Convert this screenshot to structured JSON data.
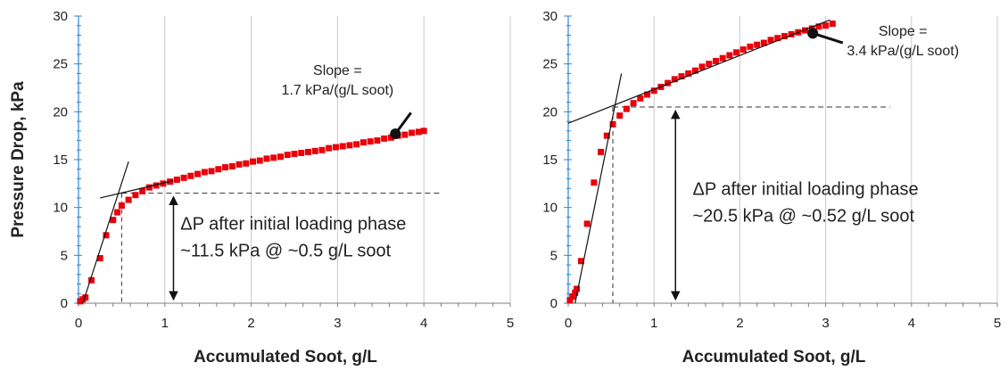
{
  "chart_data": [
    {
      "type": "scatter",
      "xlabel": "Accumulated Soot, g/L",
      "ylabel": "Pressure Drop, kPa",
      "xlim": [
        0,
        5
      ],
      "ylim": [
        0,
        30
      ],
      "xticks": [
        "0",
        "1",
        "2",
        "3",
        "4",
        "5"
      ],
      "yticks": [
        "0",
        "5",
        "10",
        "15",
        "20",
        "25",
        "30"
      ],
      "grid": "vertical",
      "series_color": "#e8000b",
      "x": [
        0.02,
        0.05,
        0.08,
        0.15,
        0.25,
        0.32,
        0.4,
        0.45,
        0.5,
        0.58,
        0.66,
        0.74,
        0.82,
        0.9,
        0.98,
        1.06,
        1.14,
        1.22,
        1.3,
        1.38,
        1.46,
        1.54,
        1.62,
        1.7,
        1.78,
        1.86,
        1.94,
        2.02,
        2.1,
        2.18,
        2.26,
        2.34,
        2.42,
        2.5,
        2.58,
        2.66,
        2.74,
        2.82,
        2.9,
        2.98,
        3.06,
        3.14,
        3.22,
        3.3,
        3.38,
        3.46,
        3.54,
        3.62,
        3.7,
        3.78,
        3.86,
        3.94,
        4.0
      ],
      "y": [
        0.2,
        0.4,
        0.6,
        2.4,
        4.7,
        7.1,
        8.7,
        9.5,
        10.2,
        10.8,
        11.3,
        11.7,
        12.1,
        12.3,
        12.5,
        12.7,
        12.9,
        13.1,
        13.3,
        13.5,
        13.7,
        13.8,
        14.0,
        14.2,
        14.3,
        14.5,
        14.6,
        14.8,
        14.9,
        15.1,
        15.2,
        15.3,
        15.5,
        15.6,
        15.7,
        15.8,
        15.9,
        16.0,
        16.2,
        16.3,
        16.4,
        16.5,
        16.6,
        16.8,
        16.9,
        17.0,
        17.2,
        17.3,
        17.5,
        17.6,
        17.8,
        17.9,
        18.0
      ],
      "fit_lines": [
        {
          "x": [
            0.05,
            0.58
          ],
          "y": [
            0.0,
            14.8
          ]
        },
        {
          "x": [
            0.25,
            1.1
          ],
          "y": [
            11.0,
            12.8
          ]
        }
      ],
      "threshold_y": 11.5,
      "threshold_x": 0.5,
      "slope_label": [
        "Slope =",
        "1.7 kPa/(g/L soot)"
      ],
      "slope_point": {
        "x": 3.67,
        "y": 17.7
      },
      "slope_label_pos": {
        "x": 3.0,
        "y": 22
      },
      "arrow_x": 1.1,
      "annotation": [
        "ΔP after initial loading phase",
        "~11.5 kPa @ ~0.5 g/L soot"
      ],
      "annotation_pos": {
        "x": 1.18,
        "y": 7.7
      }
    },
    {
      "type": "scatter",
      "xlabel": "Accumulated Soot, g/L",
      "ylabel": "",
      "xlim": [
        0,
        5
      ],
      "ylim": [
        0,
        30
      ],
      "xticks": [
        "0",
        "1",
        "2",
        "3",
        "4",
        "5"
      ],
      "yticks": [
        "0",
        "5",
        "10",
        "15",
        "20",
        "25",
        "30"
      ],
      "grid": "vertical",
      "series_color": "#e8000b",
      "x": [
        0.02,
        0.05,
        0.08,
        0.1,
        0.15,
        0.22,
        0.3,
        0.38,
        0.45,
        0.52,
        0.6,
        0.68,
        0.76,
        0.84,
        0.92,
        1.0,
        1.08,
        1.16,
        1.24,
        1.32,
        1.4,
        1.48,
        1.56,
        1.64,
        1.72,
        1.8,
        1.88,
        1.96,
        2.04,
        2.12,
        2.2,
        2.28,
        2.36,
        2.44,
        2.52,
        2.6,
        2.68,
        2.76,
        2.84,
        2.92,
        3.0,
        3.08
      ],
      "y": [
        0.3,
        0.7,
        1.1,
        1.5,
        4.4,
        8.3,
        12.6,
        15.8,
        17.5,
        18.7,
        19.6,
        20.3,
        20.9,
        21.4,
        21.8,
        22.2,
        22.6,
        23.0,
        23.4,
        23.7,
        24.0,
        24.3,
        24.7,
        25.0,
        25.3,
        25.6,
        25.9,
        26.2,
        26.5,
        26.8,
        27.0,
        27.2,
        27.5,
        27.7,
        27.9,
        28.1,
        28.3,
        28.5,
        28.7,
        28.9,
        29.0,
        29.2
      ],
      "fit_lines": [
        {
          "x": [
            0.08,
            0.62
          ],
          "y": [
            0.0,
            24.0
          ]
        },
        {
          "x": [
            0.0,
            3.05
          ],
          "y": [
            18.8,
            29.6
          ]
        }
      ],
      "threshold_y": 20.5,
      "threshold_x": 0.52,
      "slope_label": [
        "Slope =",
        "3.4 kPa/(g/L soot)"
      ],
      "slope_point": {
        "x": 2.85,
        "y": 28.2
      },
      "slope_label_pos": {
        "x": 3.9,
        "y": 26.1
      },
      "arrow_x": 1.25,
      "annotation": [
        "ΔP after initial loading phase",
        "~20.5 kPa @ ~0.52 g/L soot"
      ],
      "annotation_pos": {
        "x": 1.45,
        "y": 11.3
      }
    }
  ]
}
